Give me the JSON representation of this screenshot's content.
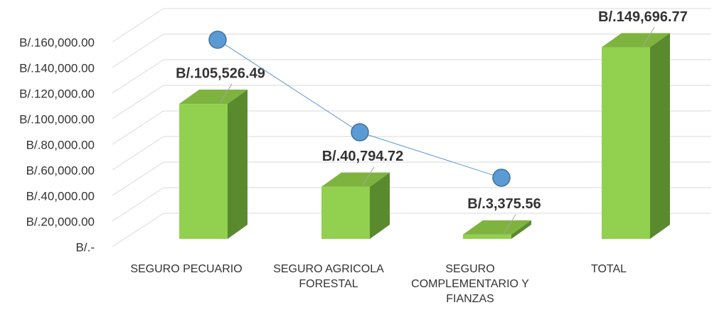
{
  "chart_data": {
    "type": "bar",
    "categories": [
      "SEGURO PECUARIO",
      "SEGURO AGRICOLA FORESTAL",
      "SEGURO COMPLEMENTARIO Y FIANZAS",
      "TOTAL"
    ],
    "series": [
      {
        "type": "bar",
        "color": "#92d050",
        "values": [
          105526.49,
          40794.72,
          3375.56,
          149696.77
        ],
        "value_labels": [
          "B/.105,526.49",
          "B/.40,794.72",
          "B/.3,375.56",
          "B/.149,696.77"
        ]
      },
      {
        "type": "line",
        "color": "#5b9bd5",
        "values": [
          155600,
          83300,
          47800,
          null
        ]
      }
    ],
    "ylim": [
      0,
      160000
    ],
    "yticks": [
      {
        "value": 0,
        "label": "B/.-"
      },
      {
        "value": 20000,
        "label": "B/.20,000.00"
      },
      {
        "value": 40000,
        "label": "B/.40,000.00"
      },
      {
        "value": 60000,
        "label": "B/.60,000.00"
      },
      {
        "value": 80000,
        "label": "B/.80,000.00"
      },
      {
        "value": 100000,
        "label": "B/.100,000.00"
      },
      {
        "value": 120000,
        "label": "B/.120,000.00"
      },
      {
        "value": 140000,
        "label": "B/.140,000.00"
      },
      {
        "value": 160000,
        "label": "B/.160,000.00"
      }
    ],
    "grid": true
  }
}
